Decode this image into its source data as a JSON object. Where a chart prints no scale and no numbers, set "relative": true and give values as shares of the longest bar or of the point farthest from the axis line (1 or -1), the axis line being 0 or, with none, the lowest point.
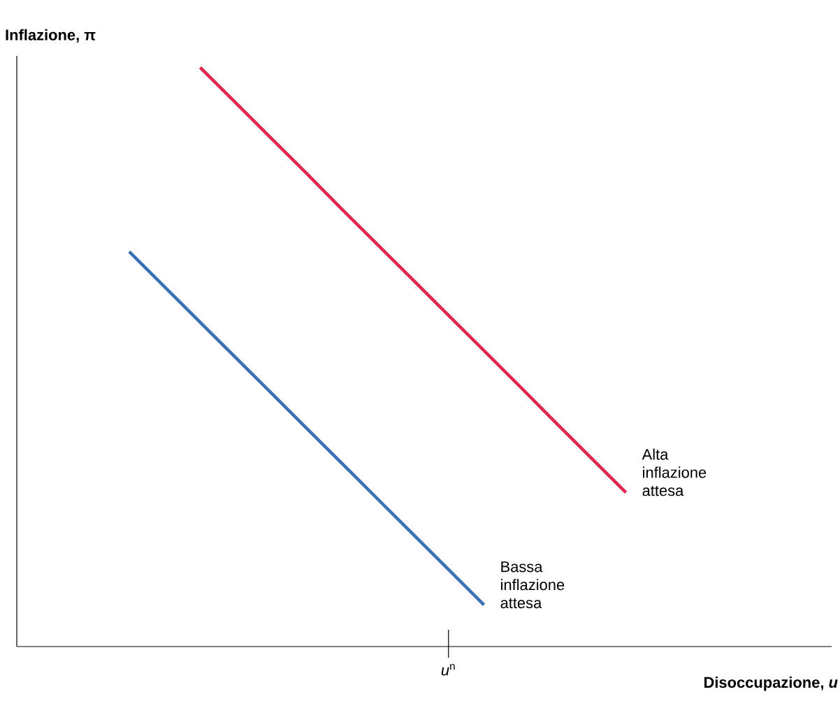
{
  "chart_data": {
    "type": "line",
    "relative": true,
    "ylabel": "Inflazione, π",
    "xlabel": "Disoccupazione, *u*",
    "categories": [
      null,
      null,
      null,
      null,
      null,
      null,
      null,
      null,
      null,
      null,
      null,
      null,
      null,
      null,
      null
    ],
    "annotations": [
      "*u*$^{n}$"
    ],
    "line_style": "solid",
    "series": [
      {
        "name": "Alta inflazione attesa",
        "color": "#e0284f",
        "values": [
          null,
          null,
          1,
          0.939,
          0.878,
          0.817,
          0.755,
          0.694,
          0.633,
          0.572,
          0.511,
          0.45,
          0.388,
          0.327,
          0.266
        ]
      },
      {
        "name": "Bassa inflazione attesa",
        "color": "#3a70b6",
        "values": [
          0.682,
          0.621,
          0.56,
          0.499,
          0.438,
          0.377,
          0.316,
          0.255,
          0.194,
          0.133,
          0.072,
          null,
          null,
          null,
          null
        ]
      }
    ]
  }
}
